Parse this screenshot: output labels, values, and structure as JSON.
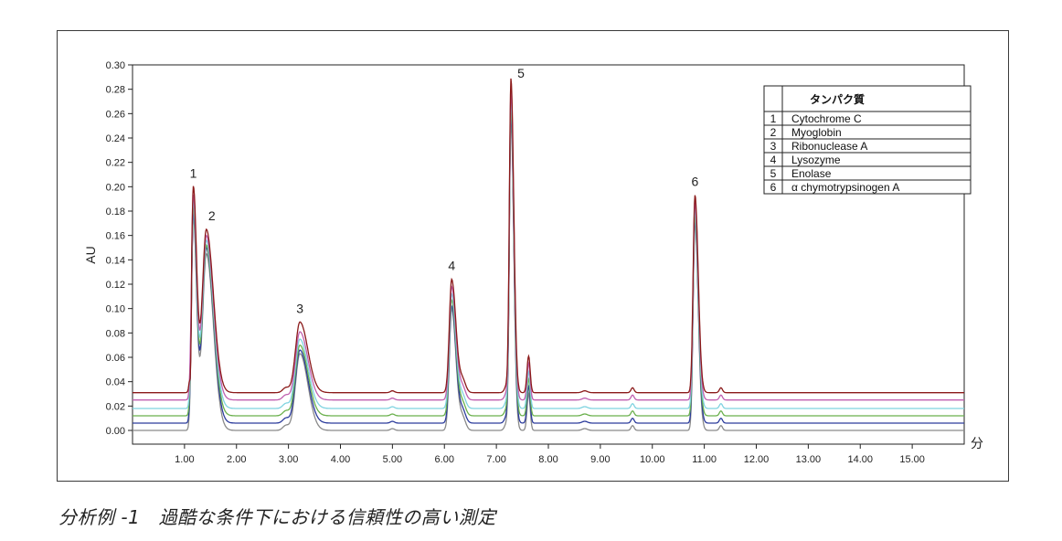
{
  "caption": "分析例 -1　過酷な条件下における信頼性の高い測定",
  "chart_data": {
    "type": "line",
    "ylabel": "AU",
    "xlabel": "分",
    "xlim": [
      0,
      16
    ],
    "ylim": [
      -0.01,
      0.3
    ],
    "x_ticks": [
      "1.00",
      "2.00",
      "3.00",
      "4.00",
      "5.00",
      "6.00",
      "7.00",
      "8.00",
      "9.00",
      "10.00",
      "11.00",
      "12.00",
      "13.00",
      "14.00",
      "15.00"
    ],
    "y_ticks": [
      "0.00",
      "0.02",
      "0.04",
      "0.06",
      "0.08",
      "0.10",
      "0.12",
      "0.14",
      "0.16",
      "0.18",
      "0.20",
      "0.22",
      "0.24",
      "0.26",
      "0.28",
      "0.30"
    ],
    "grid": false,
    "legend": {
      "placement": "top-right",
      "header": "タンパク質",
      "rows": [
        {
          "no": "1",
          "name": "Cytochrome C"
        },
        {
          "no": "2",
          "name": "Myoglobin"
        },
        {
          "no": "3",
          "name": "Ribonuclease A"
        },
        {
          "no": "4",
          "name": "Lysozyme"
        },
        {
          "no": "5",
          "name": "Enolase"
        },
        {
          "no": "6",
          "name": "α chymotrypsinogen A"
        }
      ]
    },
    "peaks": [
      {
        "label": "1",
        "x": 1.17,
        "y": 0.2
      },
      {
        "label": "2",
        "x": 1.42,
        "y": 0.165
      },
      {
        "label": "3",
        "x": 3.22,
        "y": 0.089
      },
      {
        "label": "4",
        "x": 6.14,
        "y": 0.124
      },
      {
        "label": "5",
        "x": 7.28,
        "y": 0.288
      },
      {
        "label": "6",
        "x": 10.82,
        "y": 0.193
      }
    ],
    "series": [
      {
        "color": "#8a8a8a",
        "baseline": 0.0,
        "heights": [
          0.175,
          0.145,
          0.063,
          0.1,
          0.255,
          0.17
        ]
      },
      {
        "color": "#2c3c9c",
        "baseline": 0.006,
        "heights": [
          0.178,
          0.15,
          0.066,
          0.102,
          0.26,
          0.172
        ]
      },
      {
        "color": "#6ab04c",
        "baseline": 0.012,
        "heights": [
          0.183,
          0.152,
          0.07,
          0.107,
          0.266,
          0.176
        ]
      },
      {
        "color": "#7fd3e0",
        "baseline": 0.018,
        "heights": [
          0.188,
          0.156,
          0.075,
          0.112,
          0.272,
          0.181
        ]
      },
      {
        "color": "#c060b0",
        "baseline": 0.025,
        "heights": [
          0.193,
          0.16,
          0.081,
          0.118,
          0.279,
          0.187
        ]
      },
      {
        "color": "#8b1a1a",
        "baseline": 0.031,
        "heights": [
          0.2,
          0.165,
          0.089,
          0.124,
          0.288,
          0.193
        ]
      }
    ]
  }
}
